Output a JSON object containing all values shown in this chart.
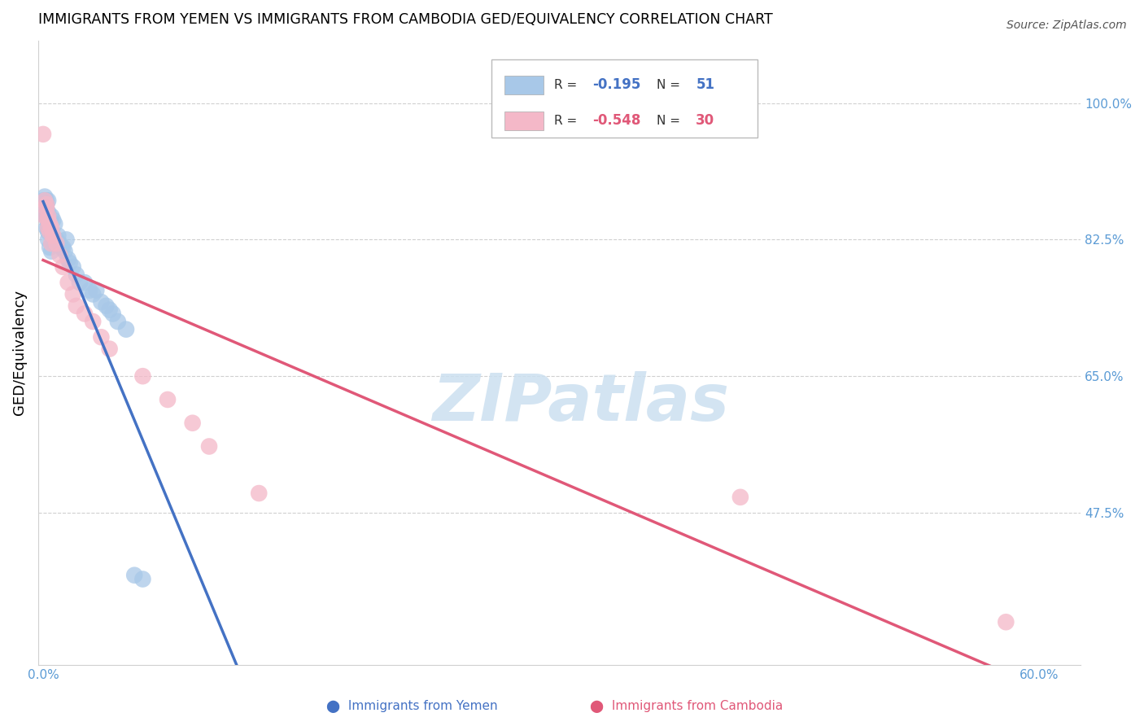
{
  "title": "IMMIGRANTS FROM YEMEN VS IMMIGRANTS FROM CAMBODIA GED/EQUIVALENCY CORRELATION CHART",
  "source": "Source: ZipAtlas.com",
  "ylabel": "GED/Equivalency",
  "ytick_labels": [
    "100.0%",
    "82.5%",
    "65.0%",
    "47.5%"
  ],
  "ytick_vals": [
    1.0,
    0.825,
    0.65,
    0.475
  ],
  "ylim": [
    0.28,
    1.08
  ],
  "xlim": [
    -0.003,
    0.625
  ],
  "color_yemen": "#a8c8e8",
  "color_cambodia": "#f4b8c8",
  "color_line_yemen": "#4472c4",
  "color_line_cambodia": "#e05878",
  "color_axis_ticks": "#5b9bd5",
  "color_grid": "#d0d0d0",
  "watermark_text": "ZIPatlas",
  "watermark_color": "#cce0f0",
  "legend_r1": "-0.195",
  "legend_n1": "51",
  "legend_r2": "-0.548",
  "legend_n2": "30",
  "yemen_x": [
    0.0,
    0.0,
    0.001,
    0.001,
    0.001,
    0.001,
    0.001,
    0.002,
    0.002,
    0.002,
    0.002,
    0.002,
    0.003,
    0.003,
    0.003,
    0.003,
    0.003,
    0.003,
    0.004,
    0.004,
    0.004,
    0.005,
    0.005,
    0.005,
    0.006,
    0.006,
    0.007,
    0.008,
    0.009,
    0.01,
    0.011,
    0.012,
    0.013,
    0.014,
    0.015,
    0.016,
    0.018,
    0.02,
    0.022,
    0.025,
    0.028,
    0.03,
    0.032,
    0.035,
    0.038,
    0.04,
    0.042,
    0.045,
    0.05,
    0.055,
    0.06
  ],
  "yemen_y": [
    0.875,
    0.87,
    0.86,
    0.855,
    0.87,
    0.88,
    0.865,
    0.86,
    0.875,
    0.855,
    0.84,
    0.87,
    0.875,
    0.86,
    0.84,
    0.835,
    0.825,
    0.845,
    0.85,
    0.835,
    0.815,
    0.855,
    0.835,
    0.81,
    0.85,
    0.82,
    0.845,
    0.825,
    0.83,
    0.82,
    0.815,
    0.815,
    0.81,
    0.825,
    0.8,
    0.795,
    0.79,
    0.78,
    0.77,
    0.77,
    0.76,
    0.755,
    0.76,
    0.745,
    0.74,
    0.735,
    0.73,
    0.72,
    0.71,
    0.395,
    0.39
  ],
  "cambodia_x": [
    0.0,
    0.001,
    0.001,
    0.002,
    0.002,
    0.003,
    0.003,
    0.003,
    0.004,
    0.004,
    0.005,
    0.005,
    0.006,
    0.008,
    0.01,
    0.012,
    0.015,
    0.018,
    0.02,
    0.025,
    0.03,
    0.035,
    0.04,
    0.06,
    0.075,
    0.09,
    0.1,
    0.13,
    0.42,
    0.58
  ],
  "cambodia_y": [
    0.96,
    0.875,
    0.855,
    0.87,
    0.865,
    0.84,
    0.85,
    0.855,
    0.845,
    0.835,
    0.84,
    0.82,
    0.83,
    0.82,
    0.805,
    0.79,
    0.77,
    0.755,
    0.74,
    0.73,
    0.72,
    0.7,
    0.685,
    0.65,
    0.62,
    0.59,
    0.56,
    0.5,
    0.495,
    0.335
  ]
}
